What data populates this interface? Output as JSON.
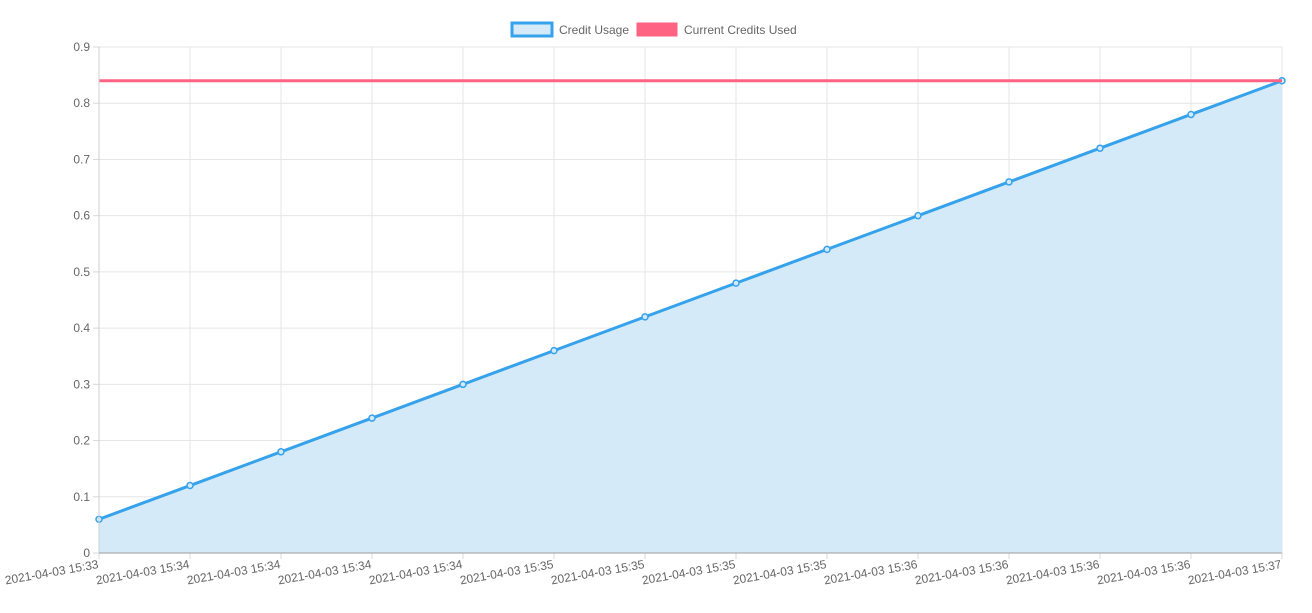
{
  "chart_data": {
    "type": "line",
    "x": [
      "2021-04-03 15:33",
      "2021-04-03 15:34",
      "2021-04-03 15:34",
      "2021-04-03 15:34",
      "2021-04-03 15:34",
      "2021-04-03 15:35",
      "2021-04-03 15:35",
      "2021-04-03 15:35",
      "2021-04-03 15:35",
      "2021-04-03 15:36",
      "2021-04-03 15:36",
      "2021-04-03 15:36",
      "2021-04-03 15:36",
      "2021-04-03 15:37"
    ],
    "series": [
      {
        "name": "Credit Usage",
        "kind": "area",
        "color": "#36a2eb",
        "fill": "#d4eaf9",
        "values": [
          0.06,
          0.12,
          0.18,
          0.24,
          0.3,
          0.36,
          0.42,
          0.48,
          0.54,
          0.6,
          0.66,
          0.72,
          0.78,
          0.84
        ]
      },
      {
        "name": "Current Credits Used",
        "kind": "line",
        "color": "#ff6384",
        "values": [
          0.84,
          0.84,
          0.84,
          0.84,
          0.84,
          0.84,
          0.84,
          0.84,
          0.84,
          0.84,
          0.84,
          0.84,
          0.84,
          0.84
        ]
      }
    ],
    "y_ticks": [
      "0",
      "0.1",
      "0.2",
      "0.3",
      "0.4",
      "0.5",
      "0.6",
      "0.7",
      "0.8",
      "0.9"
    ],
    "ylim": [
      0,
      0.9
    ],
    "grid": true,
    "legend_position": "top-center"
  }
}
